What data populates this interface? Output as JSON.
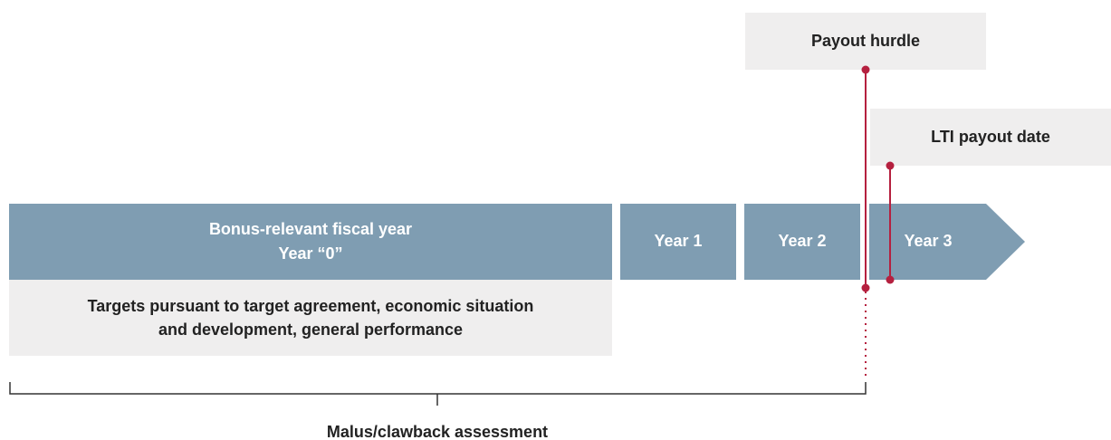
{
  "timeline": {
    "main_block": {
      "line1": "Bonus-relevant fiscal year",
      "line2": "Year “0”"
    },
    "years": [
      "Year 1",
      "Year 2",
      "Year 3"
    ],
    "targets": {
      "line1": "Targets pursuant to target agreement, economic situation",
      "line2": "and development, general performance"
    },
    "payout_hurdle": "Payout hurdle",
    "lti_payout_date": "LTI payout date",
    "malus": "Malus/clawback assessment"
  }
}
